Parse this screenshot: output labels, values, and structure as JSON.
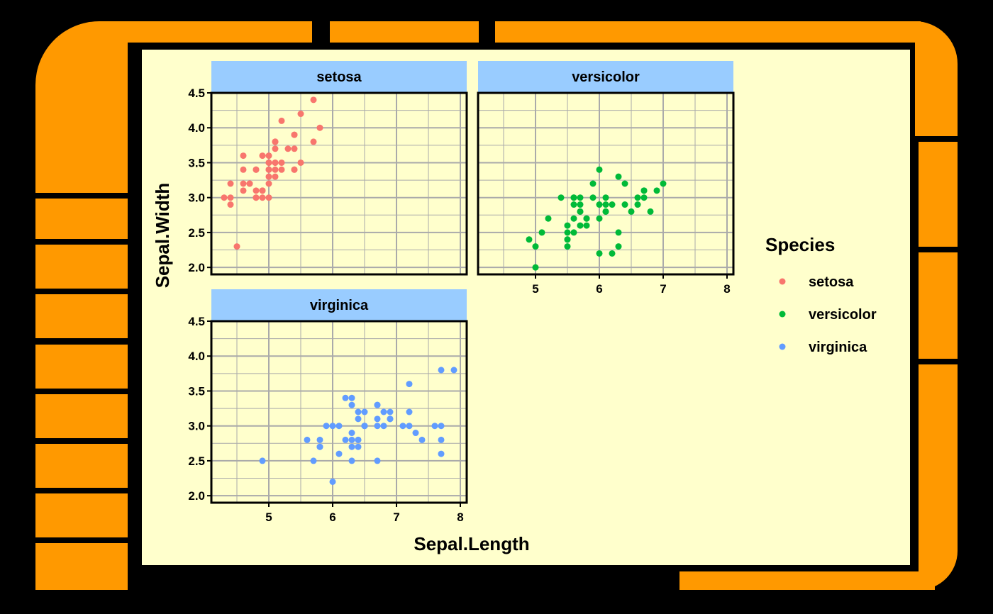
{
  "chart_data": {
    "type": "scatter",
    "xlabel": "Sepal.Length",
    "ylabel": "Sepal.Width",
    "xlim": [
      4.1,
      8.1
    ],
    "ylim": [
      1.9,
      4.5
    ],
    "x_ticks": [
      5,
      6,
      7,
      8
    ],
    "y_ticks": [
      2.0,
      2.5,
      3.0,
      3.5,
      4.0,
      4.5
    ],
    "y_tick_labels": [
      "2.0",
      "2.5",
      "3.0",
      "3.5",
      "4.0",
      "4.5"
    ],
    "grid": true,
    "legend": {
      "title": "Species",
      "position": "right"
    },
    "colors": {
      "setosa": "#f8766d",
      "versicolor": "#00ba38",
      "virginica": "#619cff",
      "strip": "#99ccff",
      "panel": "#ffffcc",
      "grid": "#aaaaaa"
    },
    "series": [
      {
        "name": "setosa",
        "x": [
          5.1,
          4.9,
          4.7,
          4.6,
          5.0,
          5.4,
          4.6,
          5.0,
          4.4,
          4.9,
          5.4,
          4.8,
          4.8,
          4.3,
          5.8,
          5.7,
          5.4,
          5.1,
          5.7,
          5.1,
          5.4,
          5.1,
          4.6,
          5.1,
          4.8,
          5.0,
          5.0,
          5.2,
          5.2,
          4.7,
          4.8,
          5.4,
          5.2,
          5.5,
          4.9,
          5.0,
          5.5,
          4.9,
          4.4,
          5.1,
          5.0,
          4.5,
          4.4,
          5.0,
          5.1,
          4.8,
          5.1,
          4.6,
          5.3,
          5.0
        ],
        "y": [
          3.5,
          3.0,
          3.2,
          3.1,
          3.6,
          3.9,
          3.4,
          3.4,
          2.9,
          3.1,
          3.7,
          3.4,
          3.0,
          3.0,
          4.0,
          4.4,
          3.9,
          3.5,
          3.8,
          3.8,
          3.4,
          3.7,
          3.6,
          3.3,
          3.4,
          3.0,
          3.4,
          3.5,
          3.4,
          3.2,
          3.1,
          3.4,
          4.1,
          4.2,
          3.1,
          3.2,
          3.5,
          3.6,
          3.0,
          3.4,
          3.5,
          2.3,
          3.2,
          3.5,
          3.8,
          3.0,
          3.8,
          3.2,
          3.7,
          3.3
        ]
      },
      {
        "name": "versicolor",
        "x": [
          7.0,
          6.4,
          6.9,
          5.5,
          6.5,
          5.7,
          6.3,
          4.9,
          6.6,
          5.2,
          5.0,
          5.9,
          6.0,
          6.1,
          5.6,
          6.7,
          5.6,
          5.8,
          6.2,
          5.6,
          5.9,
          6.1,
          6.3,
          6.1,
          6.4,
          6.6,
          6.8,
          6.7,
          6.0,
          5.7,
          5.5,
          5.5,
          5.8,
          6.0,
          5.4,
          6.0,
          6.7,
          6.3,
          5.6,
          5.5,
          5.5,
          6.1,
          5.8,
          5.0,
          5.6,
          5.7,
          5.7,
          6.2,
          5.1,
          5.7
        ],
        "y": [
          3.2,
          3.2,
          3.1,
          2.3,
          2.8,
          2.8,
          3.3,
          2.4,
          2.9,
          2.7,
          2.0,
          3.0,
          2.2,
          2.9,
          2.9,
          3.1,
          3.0,
          2.7,
          2.2,
          2.5,
          3.2,
          2.8,
          2.5,
          2.8,
          2.9,
          3.0,
          2.8,
          3.0,
          2.9,
          2.6,
          2.4,
          2.4,
          2.7,
          2.7,
          3.0,
          3.4,
          3.1,
          2.3,
          3.0,
          2.5,
          2.6,
          3.0,
          2.6,
          2.3,
          2.7,
          3.0,
          2.9,
          2.9,
          2.5,
          2.8
        ]
      },
      {
        "name": "virginica",
        "x": [
          6.3,
          5.8,
          7.1,
          6.3,
          6.5,
          7.6,
          4.9,
          7.3,
          6.7,
          7.2,
          6.5,
          6.4,
          6.8,
          5.7,
          5.8,
          6.4,
          6.5,
          7.7,
          7.7,
          6.0,
          6.9,
          5.6,
          7.7,
          6.3,
          6.7,
          7.2,
          6.2,
          6.1,
          6.4,
          7.2,
          7.4,
          7.9,
          6.4,
          6.3,
          6.1,
          7.7,
          6.3,
          6.4,
          6.0,
          6.9,
          6.7,
          6.9,
          5.8,
          6.8,
          6.7,
          6.7,
          6.3,
          6.5,
          6.2,
          5.9
        ],
        "y": [
          3.3,
          2.7,
          3.0,
          2.9,
          3.0,
          3.0,
          2.5,
          2.9,
          2.5,
          3.6,
          3.2,
          2.7,
          3.0,
          2.5,
          2.8,
          3.2,
          3.0,
          3.8,
          2.6,
          2.2,
          3.2,
          2.8,
          2.8,
          2.7,
          3.3,
          3.2,
          2.8,
          3.0,
          2.8,
          3.0,
          2.8,
          3.8,
          2.8,
          2.8,
          2.6,
          3.0,
          3.4,
          3.1,
          3.0,
          3.1,
          3.1,
          3.1,
          2.7,
          3.2,
          3.3,
          3.0,
          2.5,
          3.0,
          3.4,
          3.0
        ]
      }
    ]
  }
}
